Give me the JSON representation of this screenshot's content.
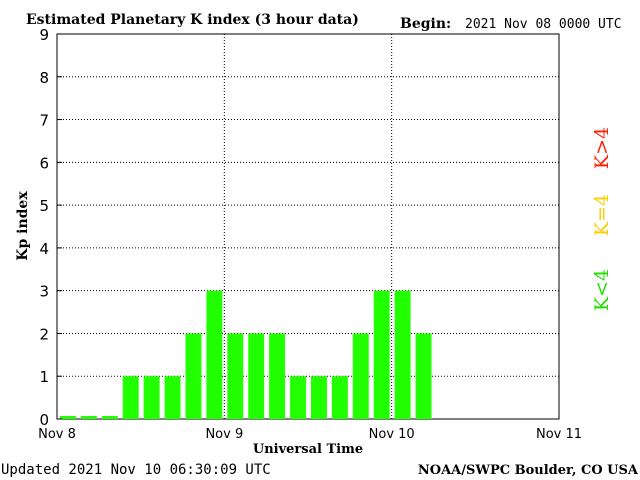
{
  "chart_data": {
    "type": "bar",
    "title": "Estimated Planetary K index (3 hour data)",
    "begin_label": "Begin:",
    "begin_value": "2021 Nov 08 0000 UTC",
    "ylabel": "Kp index",
    "xlabel": "Universal Time",
    "ylim": [
      0,
      9
    ],
    "yticks": [
      "0",
      "1",
      "2",
      "3",
      "4",
      "5",
      "6",
      "7",
      "8",
      "9"
    ],
    "xticks": [
      "Nov 8",
      "Nov 9",
      "Nov 10",
      "Nov 11"
    ],
    "slots_total": 24,
    "grid": true,
    "values": [
      0,
      0,
      0,
      1,
      1,
      1,
      2,
      3,
      2,
      2,
      2,
      1,
      1,
      1,
      2,
      3,
      3,
      2
    ],
    "bar_color": "#22ff00",
    "legend": [
      {
        "label": "K<4",
        "color": "#22dd00"
      },
      {
        "label": "K=4",
        "color": "#ffcc00"
      },
      {
        "label": "K>4",
        "color": "#ff2200"
      }
    ]
  },
  "footer": {
    "updated": "Updated 2021 Nov 10 06:30:09 UTC",
    "source": "NOAA/SWPC Boulder, CO USA"
  }
}
